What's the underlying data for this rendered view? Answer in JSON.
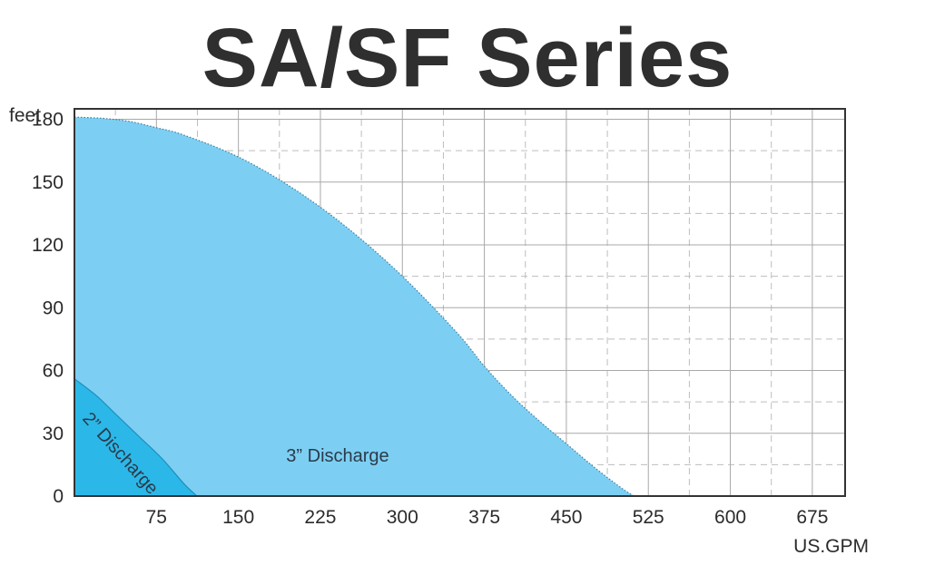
{
  "chart_data": {
    "type": "area",
    "title": "SA/SF Series",
    "xlabel": "US.GPM",
    "ylabel": "feet",
    "xlim": [
      0,
      705
    ],
    "ylim": [
      0,
      185
    ],
    "x_ticks": [
      "75",
      "150",
      "225",
      "300",
      "375",
      "450",
      "525",
      "600",
      "675"
    ],
    "y_ticks": [
      "0",
      "30",
      "60",
      "90",
      "120",
      "150",
      "180"
    ],
    "grid": true,
    "series": [
      {
        "name": "3” Discharge",
        "color": "#7ccff2",
        "x": [
          0,
          25,
          50,
          75,
          100,
          150,
          200,
          250,
          300,
          350,
          375,
          400,
          425,
          450,
          475,
          500,
          512
        ],
        "y": [
          181,
          180.5,
          179,
          176,
          172.5,
          162,
          147,
          128,
          105,
          78,
          62,
          48,
          36,
          25,
          14,
          4,
          0
        ]
      },
      {
        "name": "2” Discharge",
        "color": "#2bb8e8",
        "x": [
          0,
          20,
          40,
          60,
          80,
          100,
          112
        ],
        "y": [
          56,
          48,
          38,
          28,
          18,
          6,
          0
        ]
      }
    ],
    "annotations": [
      "3” Discharge",
      "2” Discharge"
    ]
  }
}
